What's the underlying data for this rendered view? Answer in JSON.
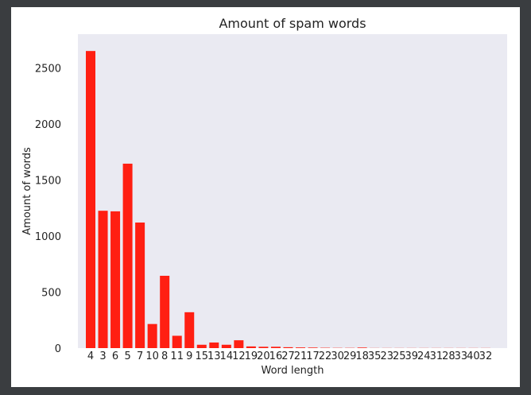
{
  "chart_data": {
    "type": "bar",
    "title": "Amount of spam words",
    "xlabel": "Word length",
    "ylabel": "Amount of words",
    "categories": [
      "4",
      "3",
      "6",
      "5",
      "7",
      "10",
      "8",
      "11",
      "9",
      "15",
      "13",
      "14",
      "12",
      "19",
      "20",
      "16",
      "27",
      "21",
      "17",
      "22",
      "30",
      "29",
      "18",
      "35",
      "23",
      "25",
      "39",
      "24",
      "31",
      "28",
      "33",
      "40",
      "32"
    ],
    "values": [
      2650,
      1225,
      1220,
      1645,
      1120,
      215,
      645,
      110,
      320,
      30,
      50,
      30,
      70,
      15,
      12,
      12,
      8,
      6,
      5,
      3,
      2,
      2,
      5,
      1,
      1,
      1,
      1,
      1,
      1,
      1,
      1,
      1,
      1
    ],
    "yticks": [
      0,
      500,
      1000,
      1500,
      2000,
      2500
    ],
    "ylim": [
      0,
      2800
    ],
    "grid": false,
    "bar_color": "#ff1f12",
    "plot_background": "#eaeaf2"
  }
}
